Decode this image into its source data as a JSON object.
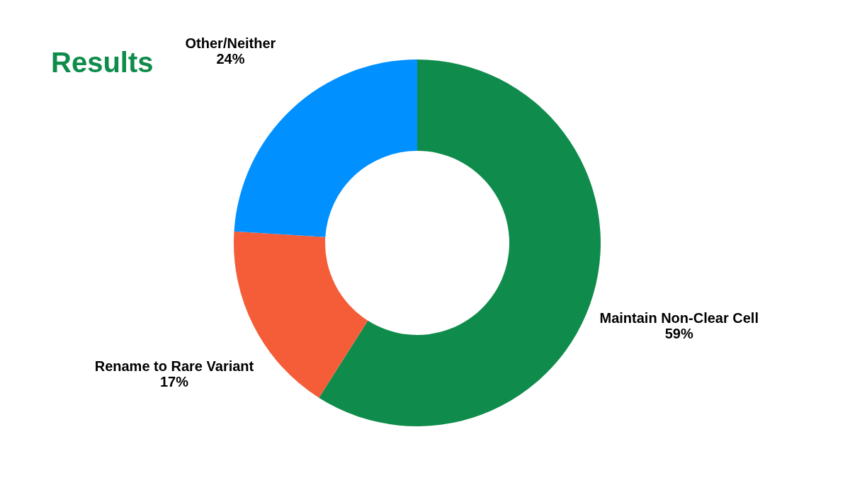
{
  "chart_data": {
    "type": "donut",
    "title": "Results",
    "categories": [
      "Maintain Non-Clear Cell",
      "Rename to Rare Variant",
      "Other/Neither"
    ],
    "values": [
      59,
      17,
      24
    ],
    "value_labels": [
      "59%",
      "17%",
      "24%"
    ],
    "colors": [
      "#0f8c4c",
      "#f45d37",
      "#0090ff"
    ],
    "legend": false
  }
}
